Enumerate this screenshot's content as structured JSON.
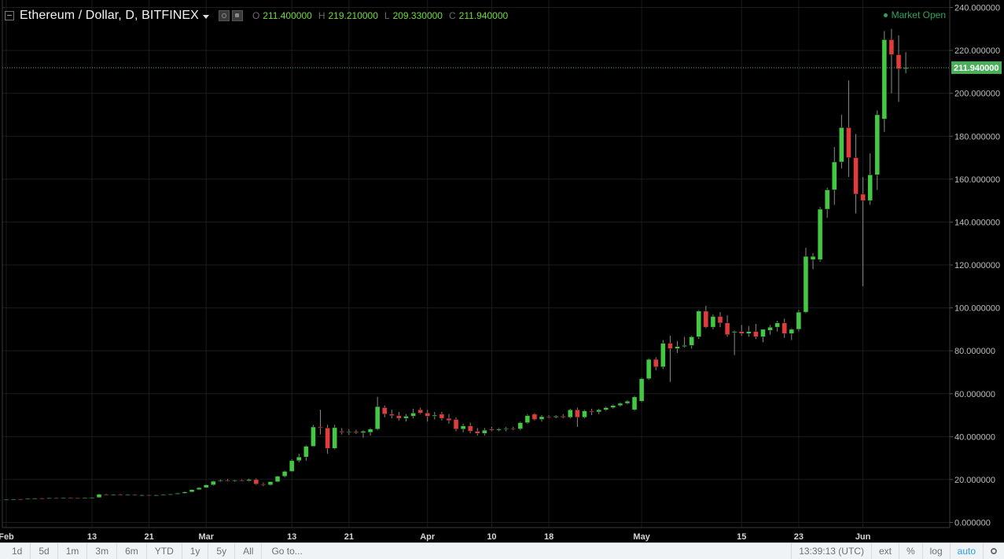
{
  "legend": {
    "symbol": "Ethereum / Dollar, D, BITFINEX",
    "open_label": "O",
    "open": "211.400000",
    "high_label": "H",
    "high": "219.210000",
    "low_label": "L",
    "low": "209.330000",
    "close_label": "C",
    "close": "211.940000"
  },
  "market_status": "Market Open",
  "last_price": "211.940000",
  "colors": {
    "up": "#43c843",
    "down": "#e23b3b",
    "wick": "#8a8a8a",
    "grid": "#1c1c1c",
    "price_line": "#4cae5b",
    "price_label": "#4cae5b"
  },
  "bottom_bar": {
    "timeframes": [
      "1d",
      "5d",
      "1m",
      "3m",
      "6m",
      "YTD",
      "1y",
      "5y",
      "All"
    ],
    "goto": "Go to...",
    "time": "13:39:13 (UTC)",
    "ext": "ext",
    "percent": "%",
    "log": "log",
    "auto": "auto",
    "settings_icon": "gear-icon"
  },
  "chart_data": {
    "type": "candlestick",
    "title": "Ethereum / Dollar, D, BITFINEX",
    "ylim": [
      0,
      240
    ],
    "y_ticks": [
      "0.000000",
      "20.000000",
      "40.000000",
      "60.000000",
      "80.000000",
      "100.000000",
      "120.000000",
      "140.000000",
      "160.000000",
      "180.000000",
      "200.000000",
      "220.000000",
      "240.000000"
    ],
    "x_ticks": [
      {
        "label": "Feb",
        "index": 0
      },
      {
        "label": "13",
        "index": 12
      },
      {
        "label": "21",
        "index": 20
      },
      {
        "label": "Mar",
        "index": 28
      },
      {
        "label": "13",
        "index": 40
      },
      {
        "label": "21",
        "index": 48
      },
      {
        "label": "Apr",
        "index": 59
      },
      {
        "label": "10",
        "index": 68
      },
      {
        "label": "18",
        "index": 76
      },
      {
        "label": "May",
        "index": 89
      },
      {
        "label": "15",
        "index": 103
      },
      {
        "label": "23",
        "index": 111
      },
      {
        "label": "Jun",
        "index": 120
      }
    ],
    "grid": true,
    "candles": [
      {
        "o": 10.6,
        "h": 10.8,
        "l": 10.5,
        "c": 10.7
      },
      {
        "o": 10.7,
        "h": 11.0,
        "l": 10.6,
        "c": 10.9
      },
      {
        "o": 10.9,
        "h": 11.1,
        "l": 10.7,
        "c": 10.8
      },
      {
        "o": 10.8,
        "h": 11.2,
        "l": 10.7,
        "c": 11.1
      },
      {
        "o": 11.1,
        "h": 11.4,
        "l": 11.0,
        "c": 11.3
      },
      {
        "o": 11.3,
        "h": 11.5,
        "l": 11.1,
        "c": 11.2
      },
      {
        "o": 11.2,
        "h": 11.5,
        "l": 11.1,
        "c": 11.4
      },
      {
        "o": 11.4,
        "h": 11.6,
        "l": 11.2,
        "c": 11.3
      },
      {
        "o": 11.3,
        "h": 11.6,
        "l": 11.2,
        "c": 11.5
      },
      {
        "o": 11.5,
        "h": 11.7,
        "l": 11.3,
        "c": 11.4
      },
      {
        "o": 11.4,
        "h": 11.6,
        "l": 11.2,
        "c": 11.3
      },
      {
        "o": 11.3,
        "h": 11.6,
        "l": 11.2,
        "c": 11.5
      },
      {
        "o": 11.5,
        "h": 11.8,
        "l": 11.4,
        "c": 11.6
      },
      {
        "o": 11.6,
        "h": 13.5,
        "l": 11.5,
        "c": 13.1
      },
      {
        "o": 13.1,
        "h": 13.4,
        "l": 12.6,
        "c": 12.8
      },
      {
        "o": 12.8,
        "h": 13.2,
        "l": 12.5,
        "c": 13.0
      },
      {
        "o": 13.0,
        "h": 13.3,
        "l": 12.7,
        "c": 12.9
      },
      {
        "o": 12.9,
        "h": 13.2,
        "l": 12.6,
        "c": 13.0
      },
      {
        "o": 13.0,
        "h": 13.2,
        "l": 12.5,
        "c": 12.7
      },
      {
        "o": 12.7,
        "h": 13.0,
        "l": 12.3,
        "c": 12.8
      },
      {
        "o": 12.8,
        "h": 13.0,
        "l": 12.4,
        "c": 12.6
      },
      {
        "o": 12.6,
        "h": 12.9,
        "l": 12.3,
        "c": 12.8
      },
      {
        "o": 12.8,
        "h": 13.2,
        "l": 12.6,
        "c": 13.0
      },
      {
        "o": 13.0,
        "h": 13.3,
        "l": 12.8,
        "c": 13.2
      },
      {
        "o": 13.2,
        "h": 13.8,
        "l": 13.0,
        "c": 13.6
      },
      {
        "o": 13.6,
        "h": 14.5,
        "l": 13.4,
        "c": 14.2
      },
      {
        "o": 14.2,
        "h": 15.5,
        "l": 14.0,
        "c": 15.3
      },
      {
        "o": 15.3,
        "h": 16.5,
        "l": 15.1,
        "c": 16.2
      },
      {
        "o": 16.2,
        "h": 17.8,
        "l": 16.0,
        "c": 17.5
      },
      {
        "o": 17.5,
        "h": 19.5,
        "l": 17.2,
        "c": 19.2
      },
      {
        "o": 19.2,
        "h": 20.0,
        "l": 18.8,
        "c": 19.5
      },
      {
        "o": 19.5,
        "h": 20.2,
        "l": 19.0,
        "c": 19.3
      },
      {
        "o": 19.3,
        "h": 19.9,
        "l": 18.9,
        "c": 19.6
      },
      {
        "o": 19.6,
        "h": 20.1,
        "l": 19.2,
        "c": 19.4
      },
      {
        "o": 19.4,
        "h": 20.5,
        "l": 19.1,
        "c": 20.0
      },
      {
        "o": 20.0,
        "h": 20.6,
        "l": 17.5,
        "c": 17.9
      },
      {
        "o": 17.9,
        "h": 18.6,
        "l": 16.9,
        "c": 17.5
      },
      {
        "o": 17.5,
        "h": 19.2,
        "l": 17.2,
        "c": 19.0
      },
      {
        "o": 19.0,
        "h": 21.8,
        "l": 18.7,
        "c": 21.5
      },
      {
        "o": 21.5,
        "h": 24.2,
        "l": 21.0,
        "c": 23.8
      },
      {
        "o": 23.8,
        "h": 29.5,
        "l": 23.5,
        "c": 28.8
      },
      {
        "o": 28.8,
        "h": 32.0,
        "l": 28.0,
        "c": 30.5
      },
      {
        "o": 30.5,
        "h": 36.0,
        "l": 28.8,
        "c": 35.5
      },
      {
        "o": 35.5,
        "h": 45.5,
        "l": 35.2,
        "c": 44.5
      },
      {
        "o": 44.5,
        "h": 52.5,
        "l": 41.0,
        "c": 44.0
      },
      {
        "o": 44.0,
        "h": 45.5,
        "l": 32.0,
        "c": 34.5
      },
      {
        "o": 34.5,
        "h": 45.5,
        "l": 34.0,
        "c": 44.2
      },
      {
        "o": 42.5,
        "h": 44.0,
        "l": 41.0,
        "c": 42.0
      },
      {
        "o": 42.0,
        "h": 43.5,
        "l": 40.8,
        "c": 42.3
      },
      {
        "o": 42.3,
        "h": 43.2,
        "l": 41.2,
        "c": 41.8
      },
      {
        "o": 41.8,
        "h": 43.0,
        "l": 39.5,
        "c": 42.5
      },
      {
        "o": 42.0,
        "h": 44.0,
        "l": 40.5,
        "c": 43.5
      },
      {
        "o": 43.5,
        "h": 58.5,
        "l": 43.0,
        "c": 54.0
      },
      {
        "o": 53.5,
        "h": 54.5,
        "l": 49.0,
        "c": 50.5
      },
      {
        "o": 50.5,
        "h": 52.5,
        "l": 48.5,
        "c": 49.8
      },
      {
        "o": 49.8,
        "h": 51.5,
        "l": 47.5,
        "c": 48.5
      },
      {
        "o": 48.5,
        "h": 50.5,
        "l": 47.0,
        "c": 49.5
      },
      {
        "o": 49.5,
        "h": 53.0,
        "l": 48.5,
        "c": 51.0
      },
      {
        "o": 52.5,
        "h": 53.5,
        "l": 50.5,
        "c": 51.0
      },
      {
        "o": 51.0,
        "h": 52.5,
        "l": 47.0,
        "c": 49.5
      },
      {
        "o": 49.5,
        "h": 51.5,
        "l": 48.0,
        "c": 50.0
      },
      {
        "o": 50.5,
        "h": 51.5,
        "l": 47.5,
        "c": 48.5
      },
      {
        "o": 48.5,
        "h": 50.5,
        "l": 46.0,
        "c": 47.5
      },
      {
        "o": 48.0,
        "h": 49.0,
        "l": 42.5,
        "c": 43.5
      },
      {
        "o": 43.5,
        "h": 46.0,
        "l": 42.0,
        "c": 45.0
      },
      {
        "o": 45.0,
        "h": 46.5,
        "l": 41.5,
        "c": 42.5
      },
      {
        "o": 42.5,
        "h": 44.0,
        "l": 40.5,
        "c": 41.5
      },
      {
        "o": 41.5,
        "h": 44.0,
        "l": 40.5,
        "c": 43.0
      },
      {
        "o": 43.5,
        "h": 44.5,
        "l": 42.5,
        "c": 43.0
      },
      {
        "o": 43.0,
        "h": 44.0,
        "l": 42.5,
        "c": 43.5
      },
      {
        "o": 43.5,
        "h": 44.5,
        "l": 42.5,
        "c": 43.8
      },
      {
        "o": 43.8,
        "h": 44.5,
        "l": 43.0,
        "c": 43.6
      },
      {
        "o": 43.6,
        "h": 47.0,
        "l": 43.0,
        "c": 46.5
      },
      {
        "o": 46.5,
        "h": 50.5,
        "l": 46.0,
        "c": 49.8
      },
      {
        "o": 50.5,
        "h": 51.0,
        "l": 47.5,
        "c": 48.0
      },
      {
        "o": 48.0,
        "h": 50.0,
        "l": 47.0,
        "c": 49.3
      },
      {
        "o": 49.3,
        "h": 50.0,
        "l": 48.5,
        "c": 49.0
      },
      {
        "o": 49.0,
        "h": 50.0,
        "l": 48.5,
        "c": 49.5
      },
      {
        "o": 49.5,
        "h": 50.5,
        "l": 48.5,
        "c": 49.0
      },
      {
        "o": 49.0,
        "h": 53.0,
        "l": 48.5,
        "c": 52.5
      },
      {
        "o": 52.5,
        "h": 53.5,
        "l": 44.5,
        "c": 49.0
      },
      {
        "o": 49.0,
        "h": 52.5,
        "l": 48.5,
        "c": 52.0
      },
      {
        "o": 52.0,
        "h": 53.0,
        "l": 50.0,
        "c": 51.5
      },
      {
        "o": 51.5,
        "h": 53.0,
        "l": 50.5,
        "c": 52.5
      },
      {
        "o": 52.5,
        "h": 54.0,
        "l": 52.0,
        "c": 53.5
      },
      {
        "o": 53.5,
        "h": 55.0,
        "l": 53.0,
        "c": 54.5
      },
      {
        "o": 54.5,
        "h": 56.0,
        "l": 54.0,
        "c": 55.5
      },
      {
        "o": 55.5,
        "h": 57.0,
        "l": 55.0,
        "c": 56.5
      },
      {
        "o": 52.5,
        "h": 59.0,
        "l": 52.0,
        "c": 58.5
      },
      {
        "o": 56.5,
        "h": 67.5,
        "l": 56.0,
        "c": 67.0
      },
      {
        "o": 67.0,
        "h": 76.5,
        "l": 66.5,
        "c": 76.0
      },
      {
        "o": 76.0,
        "h": 77.0,
        "l": 71.0,
        "c": 72.5
      },
      {
        "o": 72.5,
        "h": 85.0,
        "l": 71.5,
        "c": 83.5
      },
      {
        "o": 83.5,
        "h": 87.0,
        "l": 65.5,
        "c": 81.0
      },
      {
        "o": 81.0,
        "h": 84.5,
        "l": 79.0,
        "c": 82.0
      },
      {
        "o": 82.0,
        "h": 86.5,
        "l": 81.5,
        "c": 82.5
      },
      {
        "o": 82.5,
        "h": 87.0,
        "l": 81.0,
        "c": 86.5
      },
      {
        "o": 86.5,
        "h": 99.0,
        "l": 85.5,
        "c": 98.5
      },
      {
        "o": 98.5,
        "h": 101.0,
        "l": 90.5,
        "c": 91.0
      },
      {
        "o": 91.0,
        "h": 97.0,
        "l": 90.0,
        "c": 96.0
      },
      {
        "o": 96.0,
        "h": 98.0,
        "l": 91.0,
        "c": 93.0
      },
      {
        "o": 93.0,
        "h": 96.5,
        "l": 86.5,
        "c": 87.5
      },
      {
        "o": 88.5,
        "h": 89.5,
        "l": 78.0,
        "c": 89.0
      },
      {
        "o": 89.0,
        "h": 92.0,
        "l": 87.0,
        "c": 88.0
      },
      {
        "o": 88.0,
        "h": 91.5,
        "l": 86.5,
        "c": 89.0
      },
      {
        "o": 89.0,
        "h": 92.5,
        "l": 85.5,
        "c": 86.5
      },
      {
        "o": 86.5,
        "h": 90.0,
        "l": 84.0,
        "c": 90.0
      },
      {
        "o": 89.5,
        "h": 92.0,
        "l": 87.5,
        "c": 91.0
      },
      {
        "o": 91.0,
        "h": 94.0,
        "l": 89.0,
        "c": 93.0
      },
      {
        "o": 93.0,
        "h": 95.0,
        "l": 86.0,
        "c": 88.0
      },
      {
        "o": 88.0,
        "h": 90.5,
        "l": 85.0,
        "c": 90.0
      },
      {
        "o": 90.0,
        "h": 99.0,
        "l": 89.0,
        "c": 98.0
      },
      {
        "o": 98.0,
        "h": 128.0,
        "l": 97.5,
        "c": 124.0
      },
      {
        "o": 122.5,
        "h": 125.5,
        "l": 118.0,
        "c": 124.0
      },
      {
        "o": 122.5,
        "h": 147.0,
        "l": 121.5,
        "c": 146.0
      },
      {
        "o": 146.0,
        "h": 156.0,
        "l": 142.0,
        "c": 155.0
      },
      {
        "o": 155.0,
        "h": 175.0,
        "l": 148.0,
        "c": 168.0
      },
      {
        "o": 168.0,
        "h": 190.0,
        "l": 165.0,
        "c": 184.0
      },
      {
        "o": 184.0,
        "h": 206.0,
        "l": 161.0,
        "c": 170.0
      },
      {
        "o": 170.0,
        "h": 181.0,
        "l": 144.0,
        "c": 153.0
      },
      {
        "o": 153.0,
        "h": 161.0,
        "l": 110.0,
        "c": 150.0
      },
      {
        "o": 150.0,
        "h": 172.0,
        "l": 148.0,
        "c": 162.0
      },
      {
        "o": 162.0,
        "h": 192.0,
        "l": 155.0,
        "c": 190.0
      },
      {
        "o": 188.0,
        "h": 229.0,
        "l": 182.0,
        "c": 225.0
      },
      {
        "o": 225.0,
        "h": 230.0,
        "l": 200.0,
        "c": 218.0
      },
      {
        "o": 218.0,
        "h": 227.0,
        "l": 196.0,
        "c": 211.4
      },
      {
        "o": 211.4,
        "h": 219.21,
        "l": 209.33,
        "c": 211.94
      }
    ]
  }
}
